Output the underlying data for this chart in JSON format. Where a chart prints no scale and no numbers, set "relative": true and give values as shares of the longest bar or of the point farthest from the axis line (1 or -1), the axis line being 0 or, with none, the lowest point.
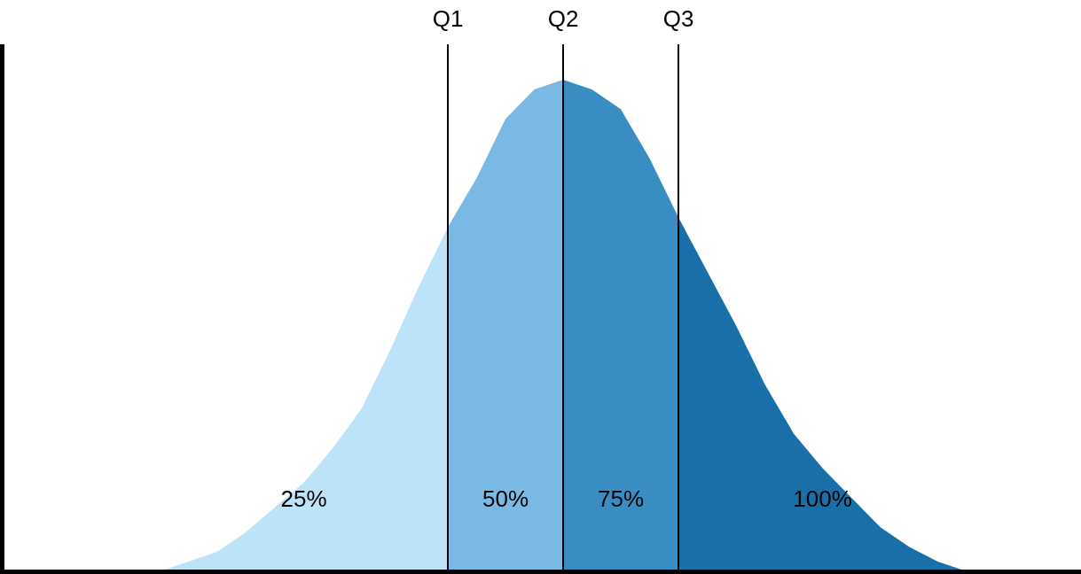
{
  "chart_data": {
    "type": "area",
    "relative": true,
    "legend": false,
    "categories": [
      null,
      null,
      null,
      null,
      null,
      null,
      null,
      null,
      null,
      null,
      null,
      null,
      null,
      null,
      null,
      null,
      null,
      null,
      null,
      null,
      null,
      null,
      null,
      null,
      null,
      null,
      null,
      null,
      null
    ],
    "series": [
      {
        "color": "#bde3f9",
        "values": [
          0,
          0.02,
          0.04,
          0.08,
          0.13,
          0.18,
          0.25,
          0.33,
          0.45,
          0.58,
          0.7,
          null,
          null,
          null,
          null,
          null,
          null,
          null,
          null,
          null,
          null,
          null,
          null,
          null,
          null,
          null,
          null,
          null,
          null
        ]
      },
      {
        "color": "#79b9e3",
        "values": [
          null,
          null,
          null,
          null,
          null,
          null,
          null,
          null,
          null,
          null,
          0.7,
          0.8,
          0.92,
          0.98,
          1,
          null,
          null,
          null,
          null,
          null,
          null,
          null,
          null,
          null,
          null,
          null,
          null,
          null,
          null
        ]
      },
      {
        "color": "#3a8dc2",
        "values": [
          null,
          null,
          null,
          null,
          null,
          null,
          null,
          null,
          null,
          null,
          null,
          null,
          null,
          null,
          1,
          0.98,
          0.94,
          0.84,
          0.72,
          null,
          null,
          null,
          null,
          null,
          null,
          null,
          null,
          null,
          null
        ]
      },
      {
        "color": "#1a6fa8",
        "values": [
          null,
          null,
          null,
          null,
          null,
          null,
          null,
          null,
          null,
          null,
          null,
          null,
          null,
          null,
          null,
          null,
          null,
          null,
          0.72,
          0.61,
          0.5,
          0.38,
          0.28,
          0.21,
          0.15,
          0.09,
          0.05,
          0.02,
          0
        ]
      }
    ],
    "annotations": [
      "Q1",
      "Q2",
      "Q3",
      "25%",
      "50%",
      "75%",
      "100%"
    ]
  }
}
